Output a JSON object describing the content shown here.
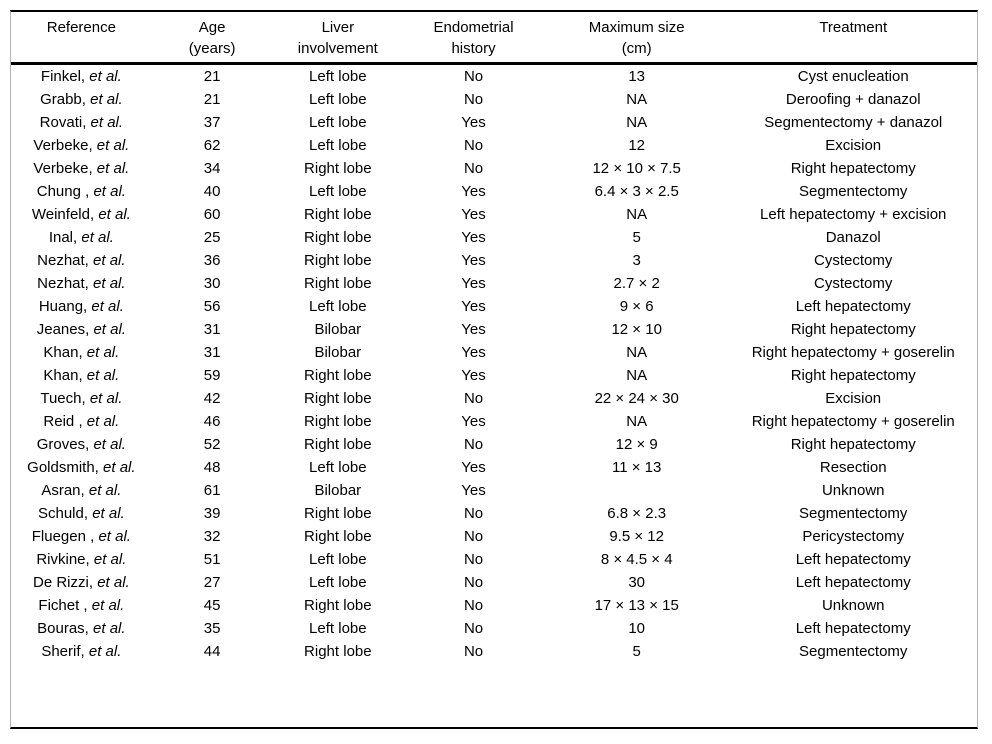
{
  "table": {
    "columns": [
      {
        "label": "Reference"
      },
      {
        "label": "Age\n(years)"
      },
      {
        "label": "Liver\ninvolvement"
      },
      {
        "label": "Endometrial\nhistory"
      },
      {
        "label": "Maximum size\n(cm)"
      },
      {
        "label": "Treatment"
      }
    ],
    "rows": [
      {
        "reference": "Finkel,",
        "etal": "et al.",
        "age": "21",
        "liver_involvement": "Left lobe",
        "endometrial_history": "No",
        "maximum_size": "13",
        "treatment": "Cyst enucleation"
      },
      {
        "reference": "Grabb,",
        "etal": "et al.",
        "age": "21",
        "liver_involvement": "Left lobe",
        "endometrial_history": "No",
        "maximum_size": "NA",
        "treatment": "Deroofing + danazol"
      },
      {
        "reference": "Rovati,",
        "etal": "et al.",
        "age": "37",
        "liver_involvement": "Left lobe",
        "endometrial_history": "Yes",
        "maximum_size": "NA",
        "treatment": "Segmentectomy + danazol"
      },
      {
        "reference": "Verbeke,",
        "etal": "et al.",
        "age": "62",
        "liver_involvement": "Left lobe",
        "endometrial_history": "No",
        "maximum_size": "12",
        "treatment": "Excision"
      },
      {
        "reference": "Verbeke,",
        "etal": "et al.",
        "age": "34",
        "liver_involvement": "Right lobe",
        "endometrial_history": "No",
        "maximum_size": "12 × 10 × 7.5",
        "treatment": "Right hepatectomy"
      },
      {
        "reference": "Chung ,",
        "etal": "et al.",
        "age": "40",
        "liver_involvement": "Left lobe",
        "endometrial_history": "Yes",
        "maximum_size": "6.4 × 3 × 2.5",
        "treatment": "Segmentectomy"
      },
      {
        "reference": "Weinfeld,",
        "etal": "et al.",
        "age": "60",
        "liver_involvement": "Right lobe",
        "endometrial_history": "Yes",
        "maximum_size": "NA",
        "treatment": "Left hepatectomy + excision"
      },
      {
        "reference": "Inal,",
        "etal": "et al.",
        "age": "25",
        "liver_involvement": "Right lobe",
        "endometrial_history": "Yes",
        "maximum_size": "5",
        "treatment": "Danazol"
      },
      {
        "reference": "Nezhat,",
        "etal": "et al.",
        "age": "36",
        "liver_involvement": "Right lobe",
        "endometrial_history": "Yes",
        "maximum_size": "3",
        "treatment": "Cystectomy"
      },
      {
        "reference": "Nezhat,",
        "etal": "et al.",
        "age": "30",
        "liver_involvement": "Right lobe",
        "endometrial_history": "Yes",
        "maximum_size": "2.7 × 2",
        "treatment": "Cystectomy"
      },
      {
        "reference": "Huang,",
        "etal": "et al.",
        "age": "56",
        "liver_involvement": "Left lobe",
        "endometrial_history": "Yes",
        "maximum_size": "9 × 6",
        "treatment": "Left hepatectomy"
      },
      {
        "reference": "Jeanes,",
        "etal": "et al.",
        "age": "31",
        "liver_involvement": "Bilobar",
        "endometrial_history": "Yes",
        "maximum_size": "12 × 10",
        "treatment": "Right hepatectomy"
      },
      {
        "reference": "Khan,",
        "etal": "et al.",
        "age": "31",
        "liver_involvement": "Bilobar",
        "endometrial_history": "Yes",
        "maximum_size": "NA",
        "treatment": "Right hepatectomy + goserelin"
      },
      {
        "reference": "Khan,",
        "etal": "et al.",
        "age": "59",
        "liver_involvement": "Right lobe",
        "endometrial_history": "Yes",
        "maximum_size": "NA",
        "treatment": "Right hepatectomy"
      },
      {
        "reference": "Tuech,",
        "etal": "et al.",
        "age": "42",
        "liver_involvement": "Right lobe",
        "endometrial_history": "No",
        "maximum_size": "22 × 24 × 30",
        "treatment": "Excision"
      },
      {
        "reference": "Reid ,",
        "etal": "et al.",
        "age": "46",
        "liver_involvement": "Right lobe",
        "endometrial_history": "Yes",
        "maximum_size": "NA",
        "treatment": "Right hepatectomy + goserelin"
      },
      {
        "reference": "Groves,",
        "etal": "et al.",
        "age": "52",
        "liver_involvement": "Right lobe",
        "endometrial_history": "No",
        "maximum_size": "12 × 9",
        "treatment": "Right hepatectomy"
      },
      {
        "reference": "Goldsmith,",
        "etal": "et al.",
        "age": "48",
        "liver_involvement": "Left lobe",
        "endometrial_history": "Yes",
        "maximum_size": "11 × 13",
        "treatment": "Resection"
      },
      {
        "reference": "Asran,",
        "etal": "et al.",
        "age": "61",
        "liver_involvement": "Bilobar",
        "endometrial_history": "Yes",
        "maximum_size": "",
        "treatment": "Unknown"
      },
      {
        "reference": "Schuld,",
        "etal": "et al.",
        "age": "39",
        "liver_involvement": "Right lobe",
        "endometrial_history": "No",
        "maximum_size": "6.8 × 2.3",
        "treatment": "Segmentectomy"
      },
      {
        "reference": "Fluegen ,",
        "etal": "et al.",
        "age": "32",
        "liver_involvement": "Right lobe",
        "endometrial_history": "No",
        "maximum_size": "9.5 × 12",
        "treatment": "Pericystectomy"
      },
      {
        "reference": "Rivkine,",
        "etal": "et al.",
        "age": "51",
        "liver_involvement": "Left lobe",
        "endometrial_history": "No",
        "maximum_size": "8 × 4.5 × 4",
        "treatment": "Left hepatectomy"
      },
      {
        "reference": "De Rizzi,",
        "etal": "et al.",
        "age": "27",
        "liver_involvement": "Left lobe",
        "endometrial_history": "No",
        "maximum_size": "30",
        "treatment": "Left hepatectomy"
      },
      {
        "reference": "Fichet ,",
        "etal": "et al.",
        "age": "45",
        "liver_involvement": "Right lobe",
        "endometrial_history": "No",
        "maximum_size": "17 × 13 × 15",
        "treatment": "Unknown"
      },
      {
        "reference": "Bouras,",
        "etal": "et al.",
        "age": "35",
        "liver_involvement": "Left lobe",
        "endometrial_history": "No",
        "maximum_size": "10",
        "treatment": "Left hepatectomy"
      },
      {
        "reference": "Sherif,",
        "etal": "et al.",
        "age": "44",
        "liver_involvement": "Right lobe",
        "endometrial_history": "No",
        "maximum_size": "5",
        "treatment": "Segmentectomy"
      }
    ]
  }
}
